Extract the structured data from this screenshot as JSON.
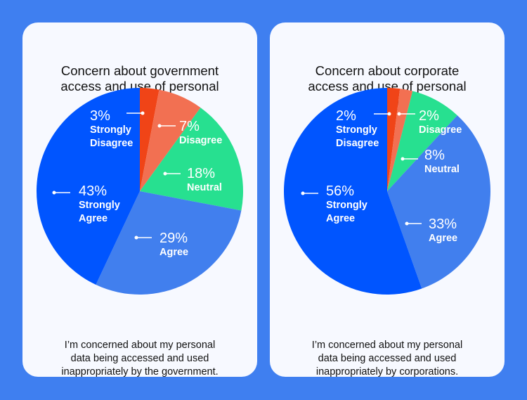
{
  "chart_data": [
    {
      "type": "pie",
      "title": "Concern about government access and use of personal data",
      "caption": "I’m concerned about my personal data being accessed and used inappropriately by the government.",
      "slices": [
        {
          "label": "Strongly Disagree",
          "value": 3,
          "text": "3%",
          "color": "#f04417"
        },
        {
          "label": "Disagree",
          "value": 7,
          "text": "7%",
          "color": "#f27052"
        },
        {
          "label": "Neutral",
          "value": 18,
          "text": "18%",
          "color": "#27e090"
        },
        {
          "label": "Agree",
          "value": 29,
          "text": "29%",
          "color": "#417fee"
        },
        {
          "label": "Strongly Agree",
          "value": 43,
          "text": "43%",
          "color": "#0055ff"
        }
      ]
    },
    {
      "type": "pie",
      "title": "Concern about corporate access and use of personal data",
      "caption": "I’m concerned about my personal data being accessed and used inappropriately by corporations.",
      "slices": [
        {
          "label": "Strongly Disagree",
          "value": 2,
          "text": "2%",
          "color": "#f04417"
        },
        {
          "label": "Disagree",
          "value": 2,
          "text": "2%",
          "color": "#f27052"
        },
        {
          "label": "Neutral",
          "value": 8,
          "text": "8%",
          "color": "#27e090"
        },
        {
          "label": "Agree",
          "value": 33,
          "text": "33%",
          "color": "#417fee"
        },
        {
          "label": "Strongly Agree",
          "value": 56,
          "text": "56%",
          "color": "#0055ff"
        }
      ]
    }
  ]
}
